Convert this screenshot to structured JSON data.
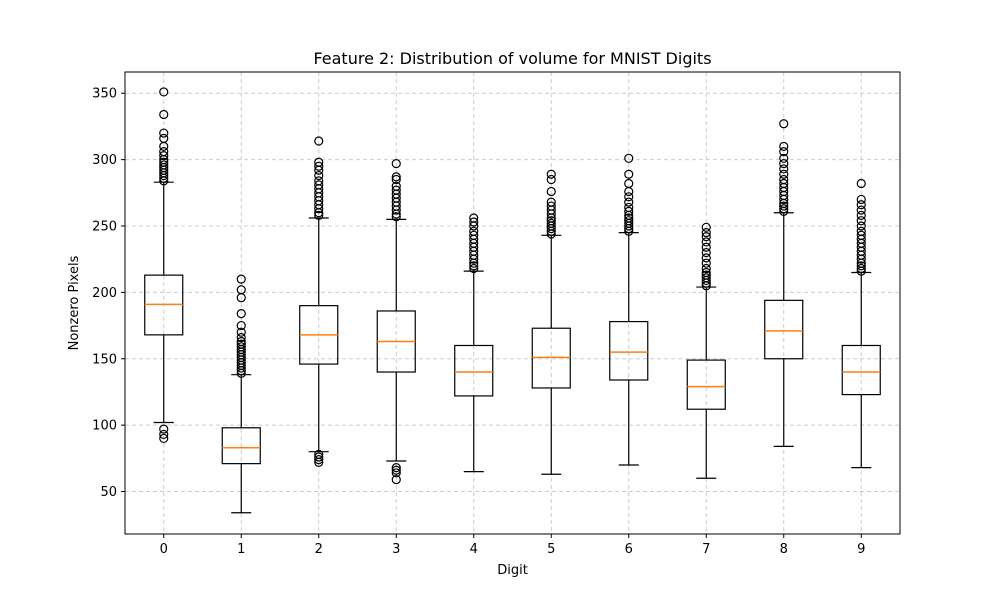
{
  "chart_data": {
    "type": "box",
    "title": "Feature 2: Distribution of volume for MNIST Digits",
    "xlabel": "Digit",
    "ylabel": "Nonzero Pixels",
    "ylim": [
      18,
      366
    ],
    "yticks": [
      50,
      100,
      150,
      200,
      250,
      300,
      350
    ],
    "grid": true,
    "colors": {
      "box": "#000000",
      "median": "#ff7f0e",
      "grid": "#cccccc"
    },
    "categories": [
      "0",
      "1",
      "2",
      "3",
      "4",
      "5",
      "6",
      "7",
      "8",
      "9"
    ],
    "boxes": [
      {
        "label": "0",
        "whisker_low": 102,
        "q1": 168,
        "median": 191,
        "q3": 213,
        "whisker_high": 283,
        "outliers": [
          90,
          93,
          97,
          284,
          286,
          288,
          290,
          292,
          294,
          296,
          298,
          300,
          303,
          306,
          310,
          316,
          320,
          334,
          351
        ]
      },
      {
        "label": "1",
        "whisker_low": 34,
        "q1": 71,
        "median": 83,
        "q3": 98,
        "whisker_high": 138,
        "outliers": [
          139,
          141,
          143,
          145,
          147,
          149,
          151,
          153,
          155,
          157,
          159,
          161,
          163,
          166,
          170,
          175,
          184,
          196,
          202,
          210
        ]
      },
      {
        "label": "2",
        "whisker_low": 80,
        "q1": 146,
        "median": 168,
        "q3": 190,
        "whisker_high": 256,
        "outliers": [
          72,
          74,
          76,
          78,
          258,
          260,
          263,
          266,
          269,
          272,
          275,
          278,
          281,
          284,
          288,
          292,
          295,
          298,
          314
        ]
      },
      {
        "label": "3",
        "whisker_low": 73,
        "q1": 140,
        "median": 163,
        "q3": 186,
        "whisker_high": 255,
        "outliers": [
          59,
          64,
          66,
          68,
          257,
          259,
          262,
          265,
          268,
          271,
          274,
          277,
          280,
          285,
          287,
          297
        ]
      },
      {
        "label": "4",
        "whisker_low": 65,
        "q1": 122,
        "median": 140,
        "q3": 160,
        "whisker_high": 216,
        "outliers": [
          218,
          220,
          222,
          225,
          228,
          231,
          234,
          237,
          240,
          243,
          246,
          250,
          253,
          256
        ]
      },
      {
        "label": "5",
        "whisker_low": 63,
        "q1": 128,
        "median": 151,
        "q3": 173,
        "whisker_high": 243,
        "outliers": [
          244,
          246,
          248,
          250,
          252,
          254,
          256,
          259,
          262,
          265,
          268,
          276,
          285,
          289
        ]
      },
      {
        "label": "6",
        "whisker_low": 70,
        "q1": 134,
        "median": 155,
        "q3": 178,
        "whisker_high": 245,
        "outliers": [
          246,
          248,
          250,
          252,
          254,
          256,
          258,
          261,
          264,
          268,
          272,
          276,
          282,
          289,
          301
        ]
      },
      {
        "label": "7",
        "whisker_low": 60,
        "q1": 112,
        "median": 129,
        "q3": 149,
        "whisker_high": 204,
        "outliers": [
          205,
          207,
          209,
          211,
          213,
          215,
          218,
          222,
          226,
          230,
          234,
          238,
          242,
          245,
          249
        ]
      },
      {
        "label": "8",
        "whisker_low": 84,
        "q1": 150,
        "median": 171,
        "q3": 194,
        "whisker_high": 260,
        "outliers": [
          261,
          263,
          265,
          267,
          270,
          273,
          276,
          279,
          282,
          285,
          289,
          293,
          297,
          301,
          306,
          310,
          327
        ]
      },
      {
        "label": "9",
        "whisker_low": 68,
        "q1": 123,
        "median": 140,
        "q3": 160,
        "whisker_high": 215,
        "outliers": [
          216,
          218,
          220,
          222,
          225,
          228,
          231,
          234,
          237,
          240,
          243,
          246,
          250,
          254,
          258,
          262,
          266,
          270,
          282
        ]
      }
    ]
  }
}
